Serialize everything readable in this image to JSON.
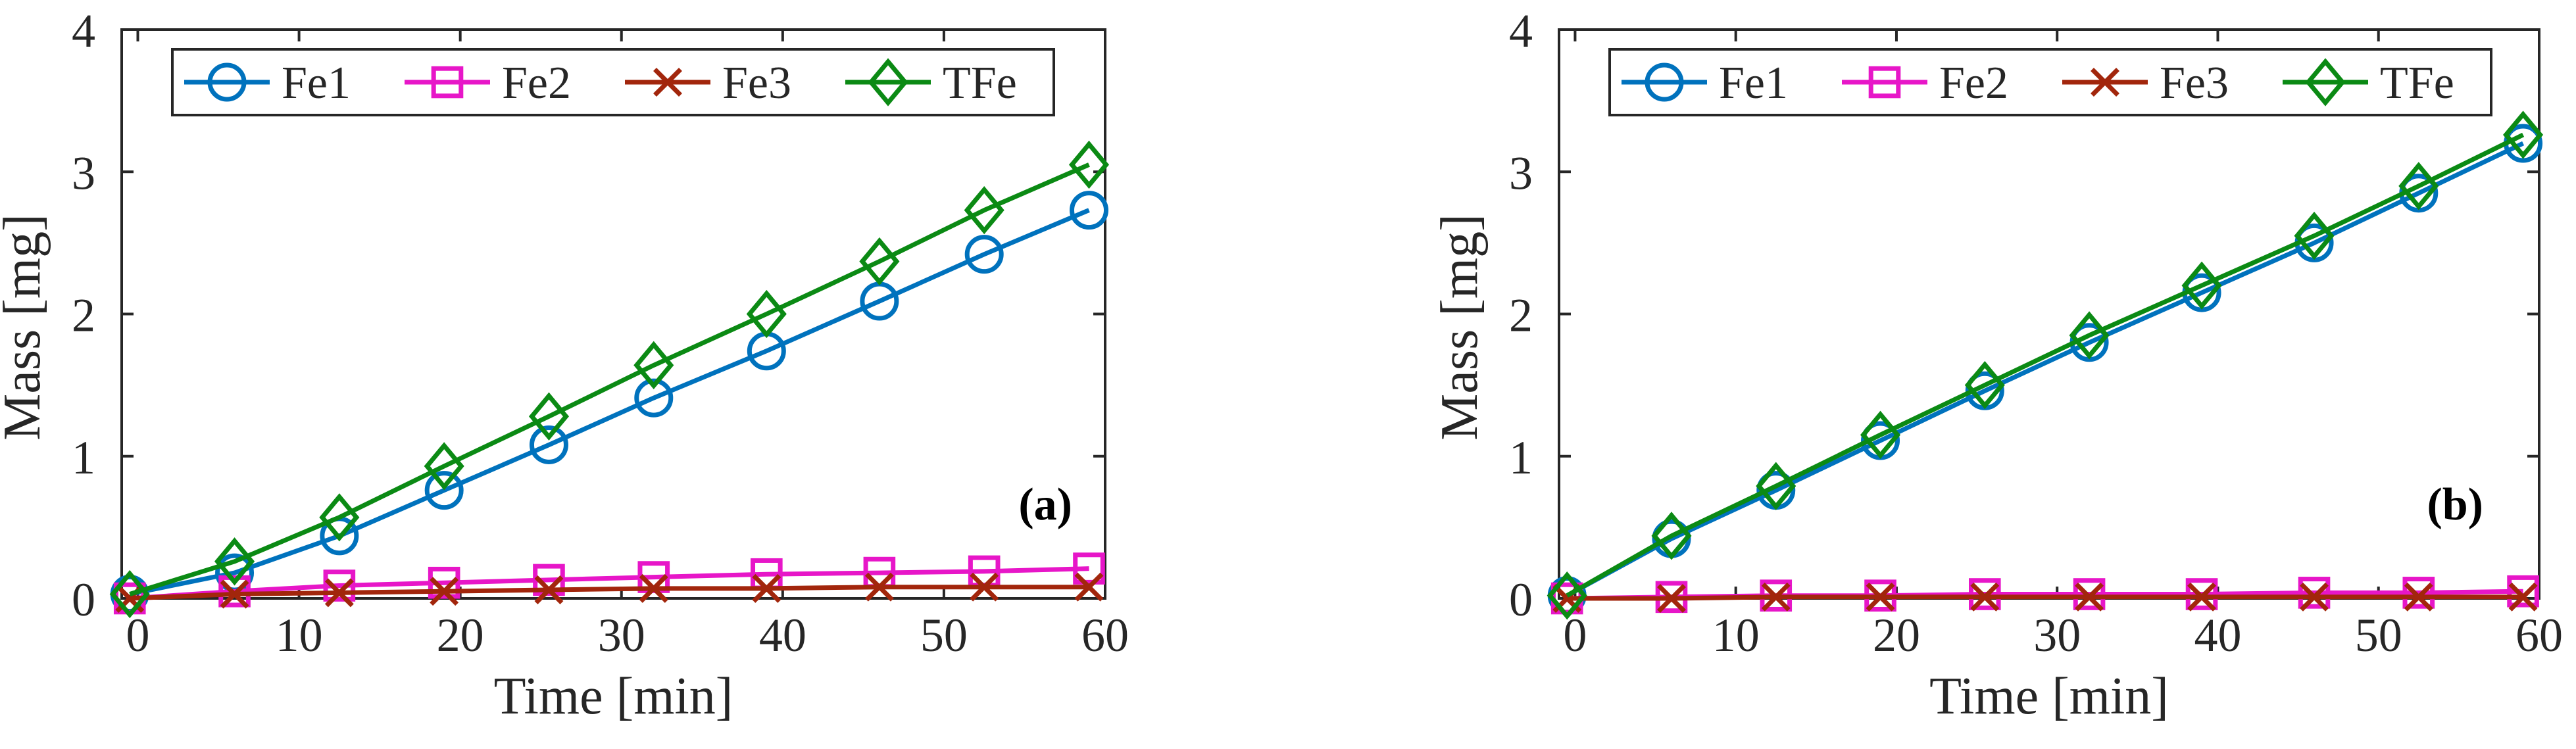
{
  "colors": {
    "Fe1": "#0072BD",
    "Fe2": "#E716C8",
    "Fe3": "#A2260C",
    "TFe": "#0B8A14",
    "axis": "#262626",
    "panel_label": "#000000"
  },
  "chart_data": [
    {
      "type": "line",
      "panel_label": "(a)",
      "xlabel": "Time [min]",
      "ylabel": "Mass [mg]",
      "xlim": [
        -1,
        60
      ],
      "ylim": [
        0,
        4
      ],
      "xticks": [
        "0",
        "10",
        "20",
        "30",
        "40",
        "50",
        "60"
      ],
      "yticks": [
        "0",
        "1",
        "2",
        "3",
        "4"
      ],
      "grid": false,
      "legend": "top, horizontal",
      "x": [
        -0.5,
        6,
        12.5,
        19,
        25.5,
        32,
        39,
        46,
        52.5,
        59
      ],
      "series": [
        {
          "name": "Fe1",
          "marker": "circle",
          "values": [
            0.03,
            0.18,
            0.44,
            0.76,
            1.08,
            1.41,
            1.74,
            2.09,
            2.42,
            2.73
          ]
        },
        {
          "name": "Fe2",
          "marker": "square",
          "values": [
            0.0,
            0.05,
            0.09,
            0.11,
            0.13,
            0.15,
            0.17,
            0.18,
            0.19,
            0.21
          ]
        },
        {
          "name": "Fe3",
          "marker": "x",
          "values": [
            0.0,
            0.03,
            0.04,
            0.05,
            0.06,
            0.07,
            0.07,
            0.08,
            0.08,
            0.08
          ]
        },
        {
          "name": "TFe",
          "marker": "diamond",
          "values": [
            0.03,
            0.26,
            0.57,
            0.93,
            1.28,
            1.64,
            2.0,
            2.37,
            2.73,
            3.05
          ]
        }
      ]
    },
    {
      "type": "line",
      "panel_label": "(b)",
      "xlabel": "Time [min]",
      "ylabel": "Mass [mg]",
      "xlim": [
        -1,
        60
      ],
      "ylim": [
        0,
        4
      ],
      "xticks": [
        "0",
        "10",
        "20",
        "30",
        "40",
        "50",
        "60"
      ],
      "yticks": [
        "0",
        "1",
        "2",
        "3",
        "4"
      ],
      "grid": false,
      "legend": "top, horizontal",
      "x": [
        -0.5,
        6,
        12.5,
        19,
        25.5,
        32,
        39,
        46,
        52.5,
        59
      ],
      "series": [
        {
          "name": "Fe1",
          "marker": "circle",
          "values": [
            0.02,
            0.42,
            0.76,
            1.11,
            1.46,
            1.8,
            2.15,
            2.5,
            2.85,
            3.2
          ]
        },
        {
          "name": "Fe2",
          "marker": "square",
          "values": [
            0.0,
            0.01,
            0.02,
            0.02,
            0.03,
            0.03,
            0.03,
            0.04,
            0.04,
            0.05
          ]
        },
        {
          "name": "Fe3",
          "marker": "x",
          "values": [
            0.0,
            0.0,
            0.01,
            0.01,
            0.01,
            0.01,
            0.01,
            0.01,
            0.01,
            0.01
          ]
        },
        {
          "name": "TFe",
          "marker": "diamond",
          "values": [
            0.02,
            0.44,
            0.79,
            1.15,
            1.5,
            1.85,
            2.2,
            2.55,
            2.9,
            3.26
          ]
        }
      ]
    }
  ]
}
